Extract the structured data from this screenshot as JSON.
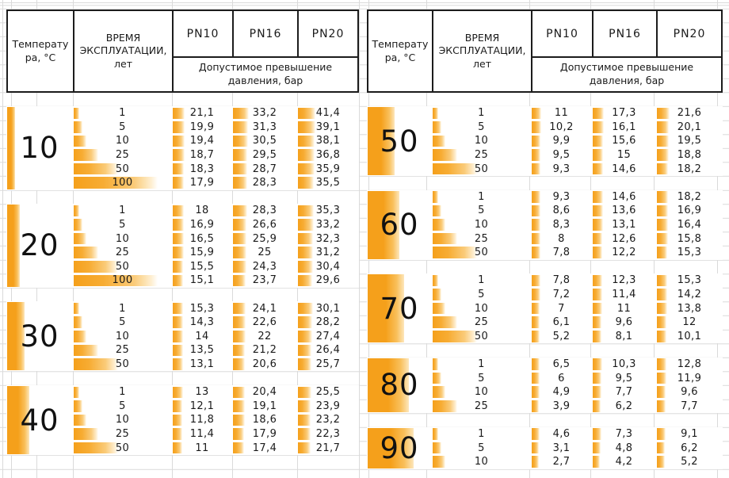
{
  "header": {
    "temp_label": "Температура, °C",
    "time_label": "ВРЕМЯ ЭКСПЛУАТАЦИИ, лет",
    "pn_labels": [
      "PN10",
      "PN16",
      "PN20"
    ],
    "sub_label": "Допустимое превышение давления, бар"
  },
  "colors": {
    "bar_orange": "#F5A01B",
    "table_border": "#1C1C1C",
    "gridline": "#DADADA",
    "text": "#1A1A1A"
  },
  "chart_data": {
    "type": "table",
    "title": "Допустимое превышение давления, бар",
    "columns": [
      "Температура, °C",
      "Время эксплуатации, лет",
      "PN10",
      "PN16",
      "PN20"
    ],
    "tables": [
      {
        "groups": [
          {
            "temp": 10,
            "rows": [
              [
                1,
                21.1,
                33.2,
                41.4
              ],
              [
                5,
                19.9,
                31.3,
                39.1
              ],
              [
                10,
                19.4,
                30.5,
                38.1
              ],
              [
                25,
                18.7,
                29.5,
                36.8
              ],
              [
                50,
                18.3,
                28.7,
                35.9
              ],
              [
                100,
                17.9,
                28.3,
                35.5
              ]
            ]
          },
          {
            "temp": 20,
            "rows": [
              [
                1,
                18,
                28.3,
                35.3
              ],
              [
                5,
                16.9,
                26.6,
                33.2
              ],
              [
                10,
                16.5,
                25.9,
                32.3
              ],
              [
                25,
                15.9,
                25,
                31.2
              ],
              [
                50,
                15.5,
                24.3,
                30.4
              ],
              [
                100,
                15.1,
                23.7,
                29.6
              ]
            ]
          },
          {
            "temp": 30,
            "rows": [
              [
                1,
                15.3,
                24.1,
                30.1
              ],
              [
                5,
                14.3,
                22.6,
                28.2
              ],
              [
                10,
                14,
                22,
                27.4
              ],
              [
                25,
                13.5,
                21.2,
                26.4
              ],
              [
                50,
                13.1,
                20.6,
                25.7
              ]
            ]
          },
          {
            "temp": 40,
            "rows": [
              [
                1,
                13,
                20.4,
                25.5
              ],
              [
                5,
                12.1,
                19.1,
                23.9
              ],
              [
                10,
                11.8,
                18.6,
                23.2
              ],
              [
                25,
                11.4,
                17.9,
                22.3
              ],
              [
                50,
                11,
                17.4,
                21.7
              ]
            ]
          }
        ]
      },
      {
        "groups": [
          {
            "temp": 50,
            "rows": [
              [
                1,
                11,
                17.3,
                21.6
              ],
              [
                5,
                10.2,
                16.1,
                20.1
              ],
              [
                10,
                9.9,
                15.6,
                19.5
              ],
              [
                25,
                9.5,
                15,
                18.8
              ],
              [
                50,
                9.3,
                14.6,
                18.2
              ]
            ]
          },
          {
            "temp": 60,
            "rows": [
              [
                1,
                9.3,
                14.6,
                18.2
              ],
              [
                5,
                8.6,
                13.6,
                16.9
              ],
              [
                10,
                8.3,
                13.1,
                16.4
              ],
              [
                25,
                8,
                12.6,
                15.8
              ],
              [
                50,
                7.8,
                12.2,
                15.3
              ]
            ]
          },
          {
            "temp": 70,
            "rows": [
              [
                1,
                7.8,
                12.3,
                15.3
              ],
              [
                5,
                7.2,
                11.4,
                14.2
              ],
              [
                10,
                7,
                11,
                13.8
              ],
              [
                25,
                6.1,
                9.6,
                12
              ],
              [
                50,
                5.2,
                8.1,
                10.1
              ]
            ]
          },
          {
            "temp": 80,
            "rows": [
              [
                1,
                6.5,
                10.3,
                12.8
              ],
              [
                5,
                6,
                9.5,
                11.9
              ],
              [
                10,
                4.9,
                7.7,
                9.6
              ],
              [
                25,
                3.9,
                6.2,
                7.7
              ]
            ]
          },
          {
            "temp": 90,
            "rows": [
              [
                1,
                4.6,
                7.3,
                9.1
              ],
              [
                5,
                3.1,
                4.8,
                6.2
              ],
              [
                10,
                2.7,
                4.2,
                5.2
              ]
            ]
          }
        ]
      }
    ]
  }
}
